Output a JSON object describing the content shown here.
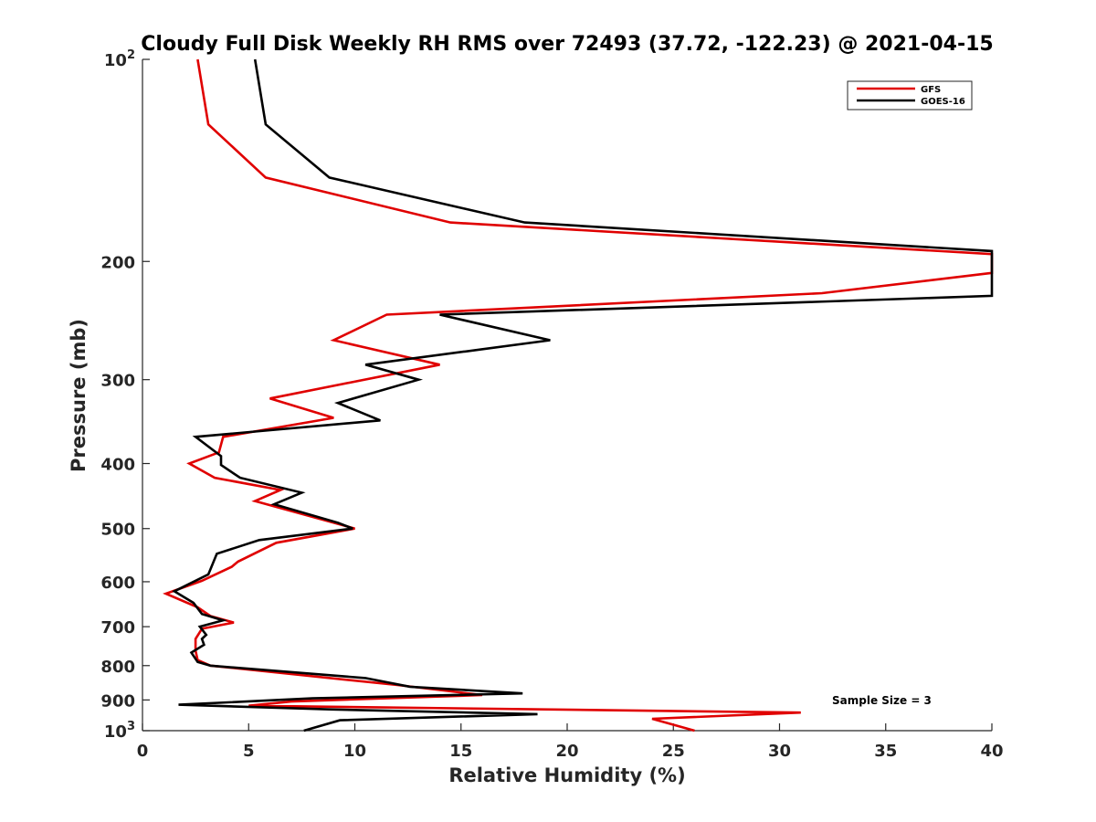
{
  "chart_data": {
    "type": "line",
    "title": "Cloudy Full Disk Weekly RH RMS over 72493 (37.72, -122.23) @ 2021-04-15",
    "xlabel": "Relative Humidity (%)",
    "ylabel": "Pressure (mb)",
    "xlim": [
      0,
      40
    ],
    "ylim": [
      100,
      1000
    ],
    "y_scale": "log",
    "y_reversed": true,
    "x_ticks": [
      "0",
      "5",
      "10",
      "15",
      "20",
      "25",
      "30",
      "35",
      "40"
    ],
    "y_ticks": [
      {
        "value": 100,
        "label": "10",
        "sup": "2"
      },
      {
        "value": 200,
        "label": "200"
      },
      {
        "value": 300,
        "label": "300"
      },
      {
        "value": 400,
        "label": "400"
      },
      {
        "value": 500,
        "label": "500"
      },
      {
        "value": 600,
        "label": "600"
      },
      {
        "value": 700,
        "label": "700"
      },
      {
        "value": 800,
        "label": "800"
      },
      {
        "value": 900,
        "label": "900"
      },
      {
        "value": 1000,
        "label": "10",
        "sup": "3"
      }
    ],
    "legend_position": "top-right",
    "grid": false,
    "annotation": "Sample Size = 3",
    "series": [
      {
        "name": "GFS",
        "color": "#e00000",
        "points": [
          [
            2.6,
            100
          ],
          [
            3.1,
            125
          ],
          [
            5.8,
            150
          ],
          [
            14.5,
            175
          ],
          [
            40,
            195
          ],
          [
            40,
            208
          ],
          [
            32,
            223
          ],
          [
            11.5,
            240
          ],
          [
            9,
            262
          ],
          [
            14,
            285
          ],
          [
            6,
            320
          ],
          [
            9,
            342
          ],
          [
            3.8,
            365
          ],
          [
            3.6,
            385
          ],
          [
            2.2,
            400
          ],
          [
            3.4,
            420
          ],
          [
            6.5,
            438
          ],
          [
            5.3,
            455
          ],
          [
            10,
            500
          ],
          [
            6.3,
            525
          ],
          [
            4.5,
            560
          ],
          [
            4.2,
            570
          ],
          [
            2.8,
            598
          ],
          [
            1.1,
            625
          ],
          [
            2.6,
            655
          ],
          [
            3.2,
            675
          ],
          [
            4.3,
            690
          ],
          [
            2.8,
            705
          ],
          [
            2.5,
            730
          ],
          [
            2.5,
            760
          ],
          [
            2.6,
            785
          ],
          [
            3.2,
            800
          ],
          [
            12,
            855
          ],
          [
            16,
            885
          ],
          [
            7,
            905
          ],
          [
            5,
            918
          ],
          [
            31,
            940
          ],
          [
            24,
            960
          ],
          [
            26,
            1000
          ]
        ]
      },
      {
        "name": "GOES-16",
        "color": "#000000",
        "points": [
          [
            5.3,
            100
          ],
          [
            5.8,
            125
          ],
          [
            8.8,
            150
          ],
          [
            18,
            175
          ],
          [
            40,
            193
          ],
          [
            40,
            225
          ],
          [
            14,
            240
          ],
          [
            19.2,
            262
          ],
          [
            10.5,
            285
          ],
          [
            13,
            300
          ],
          [
            9.2,
            325
          ],
          [
            11.2,
            345
          ],
          [
            2.5,
            365
          ],
          [
            3.7,
            390
          ],
          [
            3.7,
            402
          ],
          [
            4.6,
            420
          ],
          [
            7.5,
            442
          ],
          [
            6.2,
            460
          ],
          [
            9.2,
            490
          ],
          [
            9.9,
            500
          ],
          [
            5.5,
            520
          ],
          [
            3.5,
            545
          ],
          [
            3.2,
            575
          ],
          [
            3.1,
            585
          ],
          [
            1.5,
            620
          ],
          [
            2.4,
            645
          ],
          [
            2.8,
            670
          ],
          [
            3.8,
            685
          ],
          [
            2.7,
            700
          ],
          [
            2.9,
            713
          ],
          [
            3,
            720
          ],
          [
            2.8,
            730
          ],
          [
            2.9,
            745
          ],
          [
            2.3,
            765
          ],
          [
            2.6,
            790
          ],
          [
            3.2,
            800
          ],
          [
            10.5,
            835
          ],
          [
            12.6,
            860
          ],
          [
            17.9,
            880
          ],
          [
            8,
            895
          ],
          [
            1.7,
            915
          ],
          [
            9,
            930
          ],
          [
            18.6,
            945
          ],
          [
            9.3,
            965
          ],
          [
            7.6,
            1000
          ]
        ]
      }
    ]
  }
}
